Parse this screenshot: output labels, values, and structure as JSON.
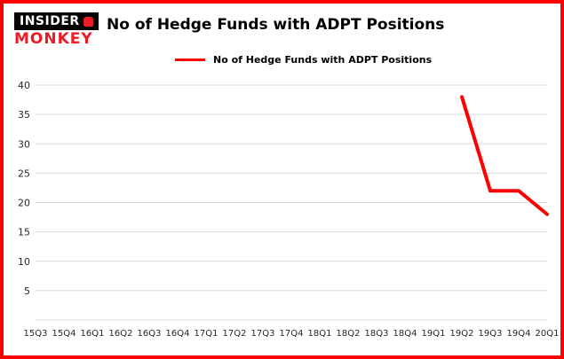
{
  "logo": {
    "line1": "INSIDER",
    "line2": "MONKEY"
  },
  "header": {
    "title": "No of Hedge Funds with ADPT Positions"
  },
  "legend": {
    "label": "No of Hedge Funds with ADPT Positions",
    "color": "#ff0000"
  },
  "colors": {
    "border": "#ff0000",
    "grid": "#d9d9d9",
    "line": "#ff0000",
    "text": "#262626",
    "brand_red": "#ec1c24",
    "brand_black": "#000000"
  },
  "chart_data": {
    "type": "line",
    "title": "No of Hedge Funds with ADPT Positions",
    "categories": [
      "15Q3",
      "15Q4",
      "16Q1",
      "16Q2",
      "16Q3",
      "16Q4",
      "17Q1",
      "17Q2",
      "17Q3",
      "17Q4",
      "18Q1",
      "18Q2",
      "18Q3",
      "18Q4",
      "19Q1",
      "19Q2",
      "19Q3",
      "19Q4",
      "20Q1"
    ],
    "series": [
      {
        "name": "No of Hedge Funds with ADPT Positions",
        "color": "#ff0000",
        "values": [
          null,
          null,
          null,
          null,
          null,
          null,
          null,
          null,
          null,
          null,
          null,
          null,
          null,
          null,
          null,
          38,
          22,
          22,
          18
        ]
      }
    ],
    "xlabel": "",
    "ylabel": "",
    "ylim": [
      0,
      40
    ],
    "ytick_step": 5,
    "grid": true,
    "legend_position": "top"
  }
}
